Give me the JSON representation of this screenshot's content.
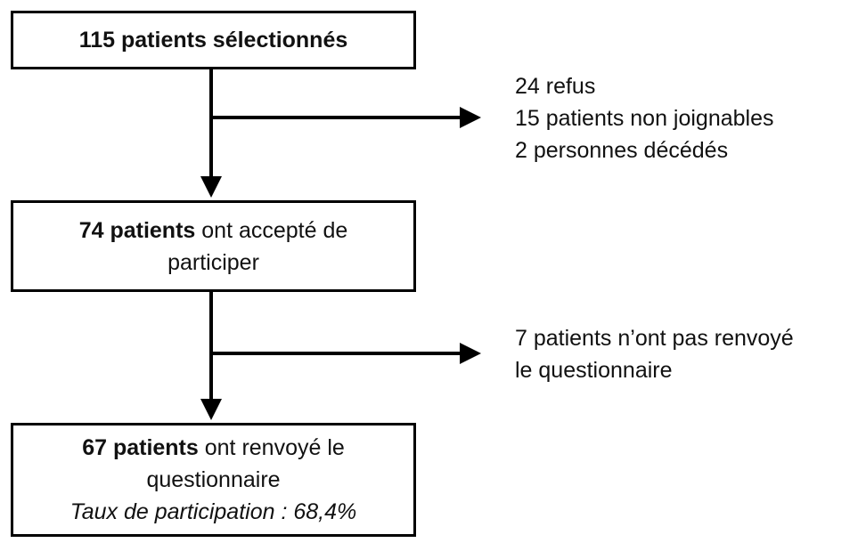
{
  "nodes": [
    {
      "bold": "115 patients sélectionnés"
    },
    {
      "bold": "74 patients",
      "lines": [
        "ont accepté de",
        "participer"
      ]
    },
    {
      "bold": "67 patients",
      "lines": [
        "ont renvoyé le",
        "questionnaire"
      ],
      "note": "Taux de participation : 68,4%"
    }
  ],
  "exclusions": [
    {
      "lines": [
        "24 refus",
        "15 patients non joignables",
        "2 personnes décédés"
      ]
    },
    {
      "lines": [
        "7 patients n’ont pas renvoyé",
        "le questionnaire"
      ]
    }
  ]
}
